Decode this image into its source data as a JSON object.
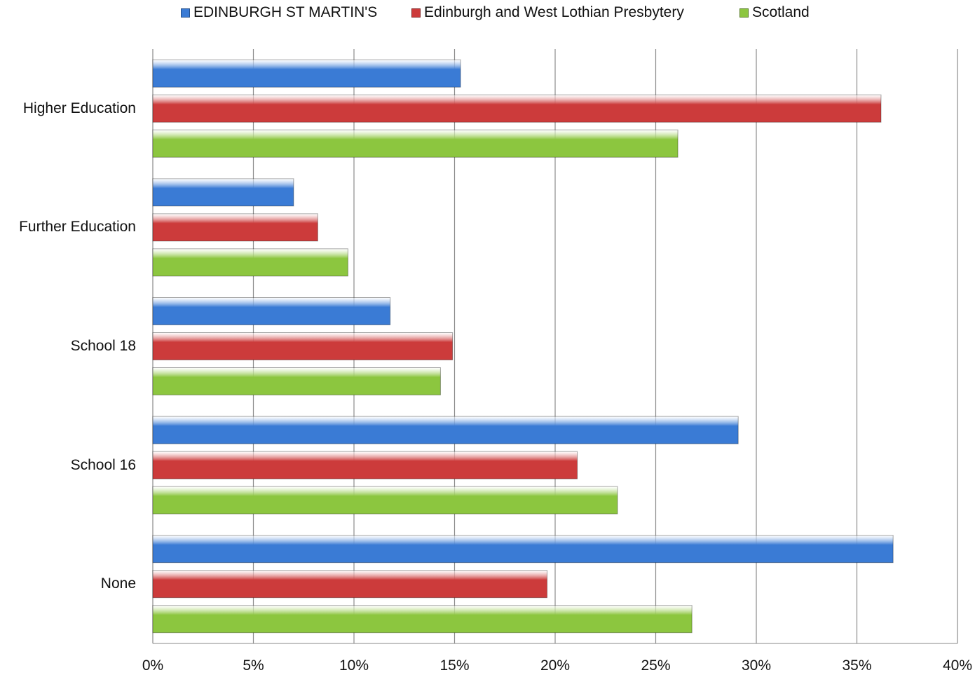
{
  "chart_data": {
    "type": "bar",
    "orientation": "horizontal",
    "categories": [
      "Higher Education",
      "Further Education",
      "School 18",
      "School 16",
      "None"
    ],
    "series": [
      {
        "name": "EDINBURGH ST MARTIN'S",
        "color": "#3a7bd5",
        "values": [
          15.3,
          7.0,
          11.8,
          29.1,
          36.8
        ]
      },
      {
        "name": "Edinburgh and West Lothian Presbytery",
        "color": "#cc3b3b",
        "values": [
          36.2,
          8.2,
          14.9,
          21.1,
          19.6
        ]
      },
      {
        "name": "Scotland",
        "color": "#8cc63f",
        "values": [
          26.1,
          9.7,
          14.3,
          23.1,
          26.8
        ]
      }
    ],
    "xlim": [
      0,
      40
    ],
    "x_ticks": [
      "0%",
      "5%",
      "10%",
      "15%",
      "20%",
      "25%",
      "30%",
      "35%",
      "40%"
    ],
    "grid": true,
    "legend_position": "top",
    "title": "",
    "xlabel": "",
    "ylabel": ""
  }
}
